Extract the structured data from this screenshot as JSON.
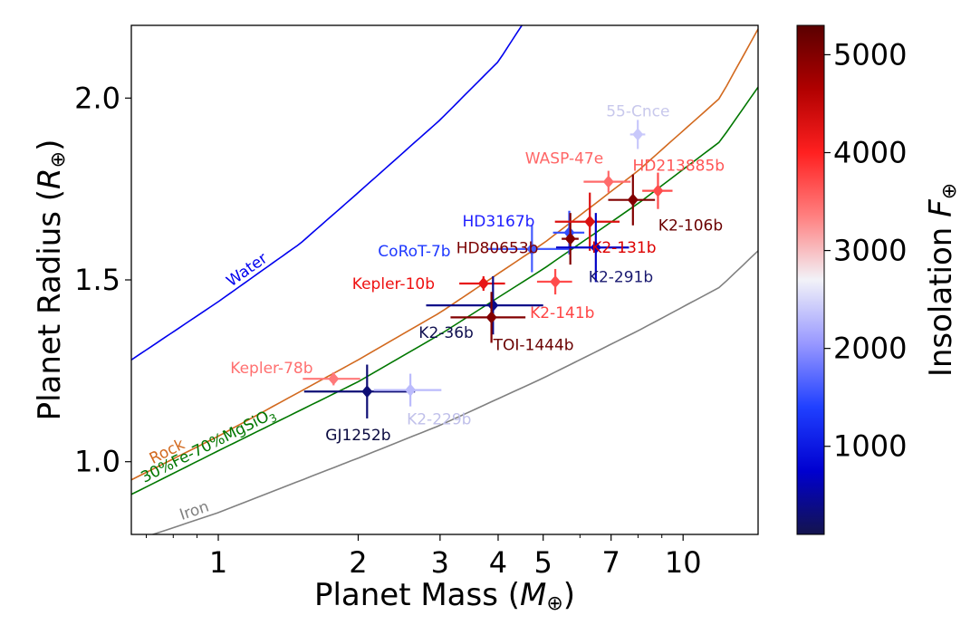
{
  "chart_data": {
    "type": "scatter",
    "xlabel": "Planet Mass (M⊕)",
    "xlabel_main": "Planet Mass (",
    "xlabel_symbol": "M",
    "xlabel_sub": "⊕",
    "xlabel_close": ")",
    "ylabel": "Planet Radius (R⊕)",
    "ylabel_main": "Planet Radius (",
    "ylabel_symbol": "R",
    "ylabel_sub": "⊕",
    "ylabel_close": ")",
    "xscale": "log",
    "xlim": [
      0.65,
      14.5
    ],
    "ylim": [
      0.8,
      2.2
    ],
    "xticks": [
      1,
      2,
      3,
      4,
      5,
      7,
      10
    ],
    "xtick_labels": [
      "1",
      "2",
      "3",
      "4",
      "5",
      "7",
      "10"
    ],
    "yticks": [
      1.0,
      1.5,
      2.0
    ],
    "ytick_labels": [
      "1.0",
      "1.5",
      "2.0"
    ],
    "grid": false,
    "colorbar": {
      "label": "Insolation F⊕",
      "label_main": "Insolation ",
      "label_symbol": "F",
      "label_sub": "⊕",
      "range": [
        100,
        5300
      ],
      "ticks": [
        1000,
        2000,
        3000,
        4000,
        5000
      ],
      "tick_labels": [
        "1000",
        "2000",
        "3000",
        "4000",
        "5000"
      ],
      "colormap": [
        "#14144d",
        "#0000d0",
        "#2040ff",
        "#9898ff",
        "#f2f2f8",
        "#ff8080",
        "#ff2020",
        "#b00000",
        "#5a0000"
      ]
    },
    "models": [
      {
        "name": "Water",
        "label": "Water",
        "color": "#0000ee",
        "points": [
          [
            0.65,
            1.28
          ],
          [
            1.0,
            1.44
          ],
          [
            1.5,
            1.6
          ],
          [
            2.0,
            1.74
          ],
          [
            3.0,
            1.94
          ],
          [
            4.0,
            2.1
          ],
          [
            4.5,
            2.2
          ]
        ]
      },
      {
        "name": "Rock",
        "label": "Rock",
        "color": "#d2691e",
        "points": [
          [
            0.65,
            0.95
          ],
          [
            1.0,
            1.07
          ],
          [
            2.0,
            1.28
          ],
          [
            3.0,
            1.41
          ],
          [
            5.0,
            1.6
          ],
          [
            8.0,
            1.8
          ],
          [
            12.0,
            2.0
          ],
          [
            14.5,
            2.19
          ]
        ]
      },
      {
        "name": "30%Fe-70%MgSiO3",
        "label": "30%Fe-70%MgSiO",
        "label_sub": "3",
        "color": "#007700",
        "points": [
          [
            0.65,
            0.91
          ],
          [
            1.0,
            1.03
          ],
          [
            2.0,
            1.22
          ],
          [
            3.0,
            1.35
          ],
          [
            5.0,
            1.53
          ],
          [
            8.0,
            1.71
          ],
          [
            12.0,
            1.88
          ],
          [
            14.5,
            2.03
          ]
        ]
      },
      {
        "name": "Iron",
        "label": "Iron",
        "color": "#808080",
        "points": [
          [
            0.65,
            0.78
          ],
          [
            1.0,
            0.86
          ],
          [
            2.0,
            1.01
          ],
          [
            3.0,
            1.1
          ],
          [
            5.0,
            1.23
          ],
          [
            8.0,
            1.36
          ],
          [
            12.0,
            1.48
          ],
          [
            14.5,
            1.58
          ]
        ]
      }
    ],
    "planets": [
      {
        "name": "55-Cnce",
        "mass": 7.99,
        "mass_err": 0.3,
        "radius": 1.9,
        "radius_err": 0.04,
        "insolation": 2400,
        "label_color": "#c8c8ec"
      },
      {
        "name": "WASP-47e",
        "mass": 6.91,
        "mass_err": 0.8,
        "radius": 1.77,
        "radius_err": 0.03,
        "insolation": 3500,
        "label_color": "#ff6666"
      },
      {
        "name": "HD213885b",
        "mass": 8.83,
        "mass_err": 0.66,
        "radius": 1.745,
        "radius_err": 0.05,
        "insolation": 3700,
        "label_color": "#ff5555"
      },
      {
        "name": "K2-106b",
        "mass": 7.8,
        "mass_err": 0.9,
        "radius": 1.72,
        "radius_err": 0.07,
        "insolation": 5000,
        "label_color": "#6a0000"
      },
      {
        "name": "HD3167b",
        "mass": 5.69,
        "mass_err": 0.44,
        "radius": 1.63,
        "radius_err": 0.06,
        "insolation": 1500,
        "label_color": "#2020ff"
      },
      {
        "name": "HD80653b",
        "mass": 5.72,
        "mass_err": 0.24,
        "radius": 1.613,
        "radius_err": 0.071,
        "insolation": 5000,
        "label_color": "#7a0000"
      },
      {
        "name": "K2-131b",
        "mass": 6.3,
        "mass_err": 1.0,
        "radius": 1.66,
        "radius_err": 0.08,
        "insolation": 4300,
        "label_color": "#dd0000"
      },
      {
        "name": "CoRoT-7b",
        "mass": 4.73,
        "mass_err": 0.95,
        "radius": 1.585,
        "radius_err": 0.064,
        "insolation": 1600,
        "label_color": "#1f39ff"
      },
      {
        "name": "K2-291b",
        "mass": 6.49,
        "mass_err": 1.16,
        "radius": 1.589,
        "radius_err": 0.095,
        "insolation": 700,
        "label_color": "#1a1a70"
      },
      {
        "name": "Kepler-10b",
        "mass": 3.72,
        "mass_err": 0.42,
        "radius": 1.49,
        "radius_err": 0.02,
        "insolation": 4200,
        "label_color": "#ee1111"
      },
      {
        "name": "K2-141b",
        "mass": 5.31,
        "mass_err": 0.46,
        "radius": 1.495,
        "radius_err": 0.035,
        "insolation": 3700,
        "label_color": "#ff4444"
      },
      {
        "name": "K2-36b",
        "mass": 3.9,
        "mass_err": 1.1,
        "radius": 1.43,
        "radius_err": 0.08,
        "insolation": 400,
        "label_color": "#101050"
      },
      {
        "name": "TOI-1444b",
        "mass": 3.87,
        "mass_err": 0.71,
        "radius": 1.397,
        "radius_err": 0.07,
        "insolation": 5000,
        "label_color": "#6a0000"
      },
      {
        "name": "Kepler-78b",
        "mass": 1.77,
        "mass_err": 0.25,
        "radius": 1.228,
        "radius_err": 0.018,
        "insolation": 3400,
        "label_color": "#ff7070"
      },
      {
        "name": "GJ1252b",
        "mass": 2.09,
        "mass_err": 0.56,
        "radius": 1.193,
        "radius_err": 0.074,
        "insolation": 300,
        "label_color": "#0a0a40"
      },
      {
        "name": "K2-229b",
        "mass": 2.59,
        "mass_err": 0.43,
        "radius": 1.197,
        "radius_err": 0.045,
        "insolation": 2300,
        "label_color": "#c0c0ea"
      }
    ]
  }
}
